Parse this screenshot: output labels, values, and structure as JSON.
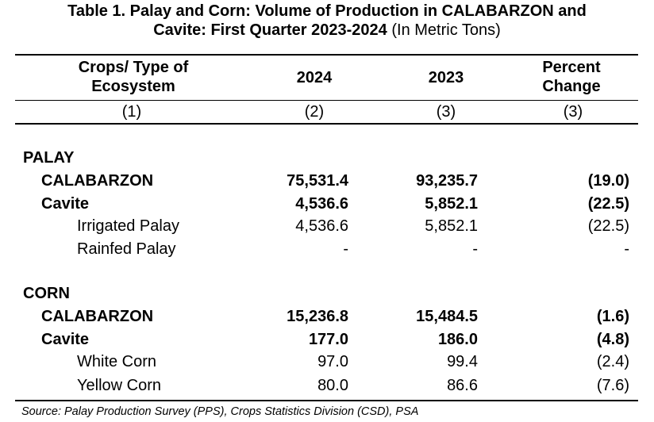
{
  "title": {
    "line1": "Table 1. Palay and Corn: Volume of Production in CALABARZON and",
    "line2_bold": "Cavite: First Quarter 2023-2024",
    "line2_normal": " (In Metric Tons)"
  },
  "header": {
    "col1_line1": "Crops/ Type of",
    "col1_line2": "Ecosystem",
    "col2": "2024",
    "col3": "2023",
    "col4_line1": "Percent",
    "col4_line2": "Change",
    "num1": "(1)",
    "num2": "(2)",
    "num3": "(3)",
    "num4": "(3)"
  },
  "rows": [
    {
      "label": "PALAY",
      "v2024": "",
      "v2023": "",
      "pct": ""
    },
    {
      "label": "CALABARZON",
      "v2024": "75,531.4",
      "v2023": "93,235.7",
      "pct": "(19.0)"
    },
    {
      "label": "Cavite",
      "v2024": "4,536.6",
      "v2023": "5,852.1",
      "pct": "(22.5)"
    },
    {
      "label": "Irrigated Palay",
      "v2024": "4,536.6",
      "v2023": "5,852.1",
      "pct": "(22.5)"
    },
    {
      "label": "Rainfed Palay",
      "v2024": "-",
      "v2023": "-",
      "pct": "-"
    },
    {
      "label": "CORN",
      "v2024": "",
      "v2023": "",
      "pct": ""
    },
    {
      "label": "CALABARZON",
      "v2024": "15,236.8",
      "v2023": "15,484.5",
      "pct": "(1.6)"
    },
    {
      "label": "Cavite",
      "v2024": "177.0",
      "v2023": "186.0",
      "pct": "(4.8)"
    },
    {
      "label": "White Corn",
      "v2024": "97.0",
      "v2023": "99.4",
      "pct": "(2.4)"
    },
    {
      "label": "Yellow Corn",
      "v2024": "80.0",
      "v2023": "86.6",
      "pct": "(7.6)"
    }
  ],
  "source": "Source: Palay Production Survey (PPS), Crops Statistics Division (CSD), PSA"
}
